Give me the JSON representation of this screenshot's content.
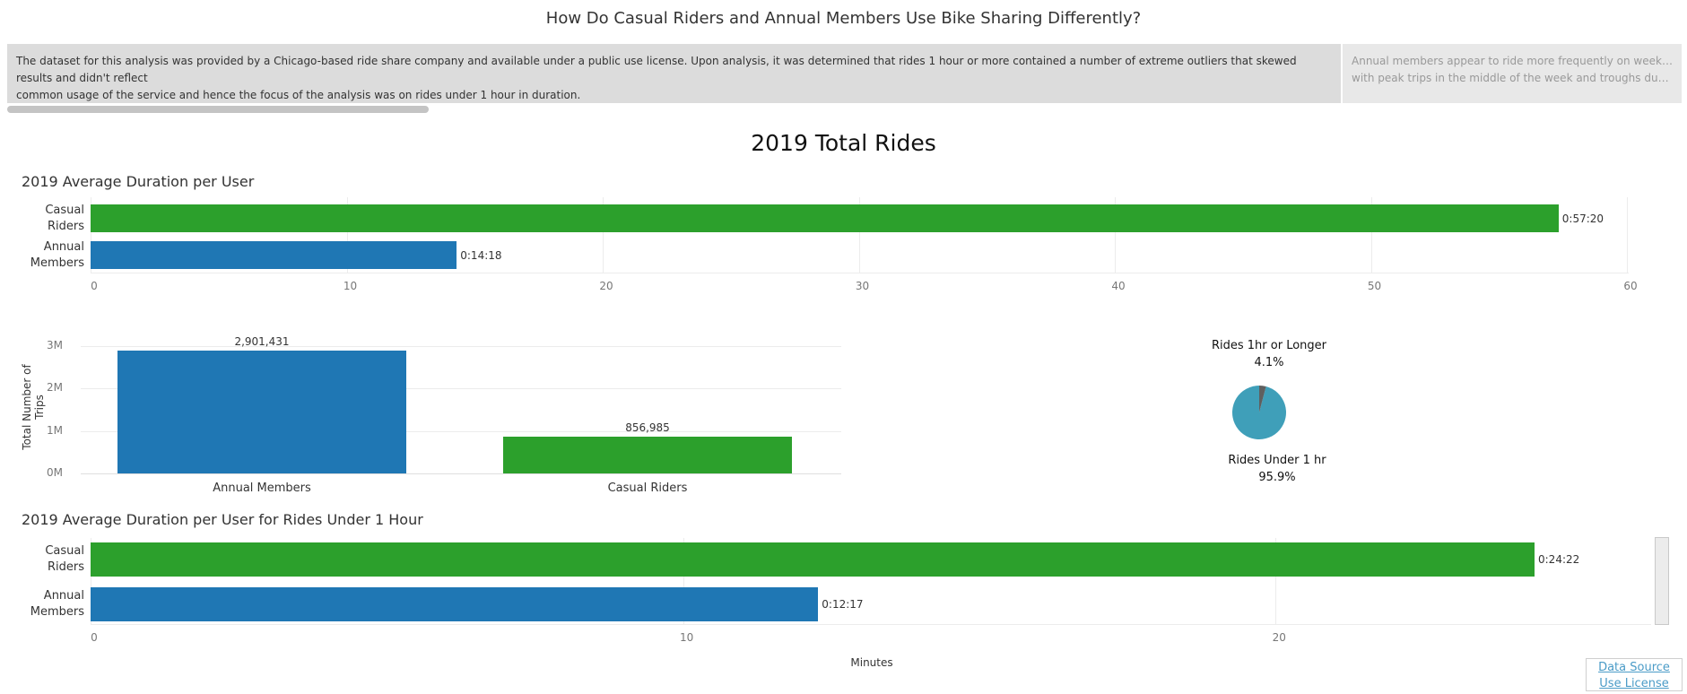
{
  "header": {
    "title": "How Do Casual Riders and Annual Members Use Bike Sharing Differently?"
  },
  "story": {
    "points": [
      {
        "lines": [
          "The dataset for this analysis was provided by a Chicago-based ride share company and available under a public use license. Upon analysis, it was determined that rides 1 hour or more contained a number of extreme outliers that skewed results and didn't reflect",
          "common usage of the service and hence the focus of the analysis was on rides under 1 hour in duration."
        ]
      },
      {
        "lines": [
          "Annual members appear to ride more frequently on weekdays",
          "with peak trips in the middle of the week and troughs during th.."
        ]
      }
    ]
  },
  "dashboard": {
    "title": "2019 Total Rides"
  },
  "colors": {
    "casual": "#2ca02c",
    "annual": "#1f77b4",
    "pie_under": "#3f9fb9",
    "pie_over": "#5f5f5f"
  },
  "chart_data": [
    {
      "type": "bar",
      "orientation": "horizontal",
      "title": "2019 Average Duration per User",
      "categories": [
        "Casual Riders",
        "Annual Members"
      ],
      "values": [
        57.33,
        14.3
      ],
      "value_labels": [
        "0:57:20",
        "0:14:18"
      ],
      "xticks": [
        "0",
        "10",
        "20",
        "30",
        "40",
        "50",
        "60"
      ],
      "xlim": [
        0,
        60
      ]
    },
    {
      "type": "bar",
      "orientation": "vertical",
      "title": "",
      "ylabel": "Total Number of Trips",
      "categories": [
        "Annual Members",
        "Casual Riders"
      ],
      "values": [
        2901431,
        856985
      ],
      "value_labels": [
        "2,901,431",
        "856,985"
      ],
      "yticks": [
        "0M",
        "1M",
        "2M",
        "3M"
      ],
      "ylim": [
        0,
        3000000
      ]
    },
    {
      "type": "pie",
      "slices": [
        {
          "label": "Rides 1hr or Longer",
          "pct_label": "4.1%",
          "value": 4.1
        },
        {
          "label": "Rides Under 1 hr",
          "pct_label": "95.9%",
          "value": 95.9
        }
      ]
    },
    {
      "type": "bar",
      "orientation": "horizontal",
      "title": "2019 Average Duration per User for Rides Under 1 Hour",
      "xlabel": "Minutes",
      "categories": [
        "Casual Riders",
        "Annual Members"
      ],
      "values": [
        24.37,
        12.28
      ],
      "value_labels": [
        "0:24:22",
        "0:12:17"
      ],
      "xticks": [
        "0",
        "10",
        "20"
      ],
      "xlim": [
        0,
        24.37
      ]
    }
  ],
  "footer": {
    "data_source": "Data Source",
    "use_license": "Use License"
  }
}
